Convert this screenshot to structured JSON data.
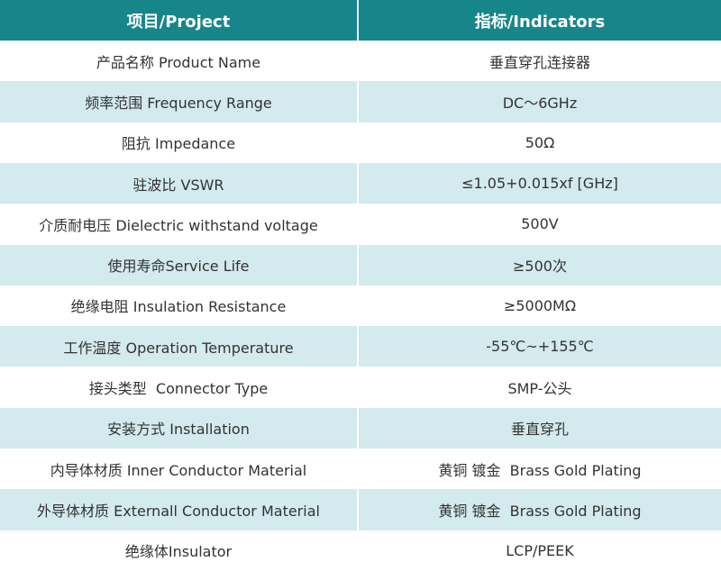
{
  "table": {
    "header": [
      "项目/Project",
      "指标/Indicators"
    ],
    "rows": [
      [
        "产品名称 Product Name",
        "垂直穿孔连接器"
      ],
      [
        "频率范围 Frequency Range",
        "DC～6GHz"
      ],
      [
        "阻抗 Impedance",
        "50Ω"
      ],
      [
        "驻波比 VSWR",
        "≤1.05+0.015xf [GHz]"
      ],
      [
        "介质耐电压 Dielectric withstand voltage",
        "500V"
      ],
      [
        "使用寿命Service Life",
        "≥500次"
      ],
      [
        "绝缘电阻 Insulation Resistance",
        "≥5000MΩ"
      ],
      [
        "工作温度 Operation Temperature",
        "-55℃~+155℃"
      ],
      [
        "接头类型  Connector Type",
        "SMP-公头"
      ],
      [
        "安装方式 Installation",
        "垂直穿孔"
      ],
      [
        "内导体材质 Inner Conductor Material",
        "黄铜 镀金  Brass Gold Plating"
      ],
      [
        "外导体材质 Externall Conductor Material",
        "黄铜 镀金  Brass Gold Plating"
      ],
      [
        "绝缘体Insulator",
        "LCP/PEEK"
      ]
    ]
  }
}
